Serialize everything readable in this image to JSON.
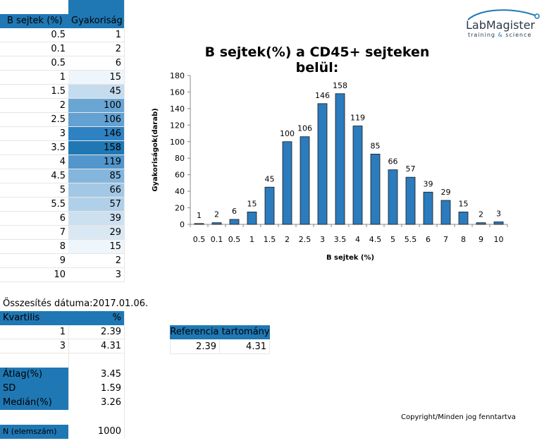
{
  "freq_table": {
    "col1_header": "B sejtek (%)",
    "col2_header": "Gyakoriság",
    "rows": [
      {
        "b": "0.5",
        "f": "1",
        "shade": "#ffffff"
      },
      {
        "b": "0.1",
        "f": "2",
        "shade": "#ffffff"
      },
      {
        "b": "0.5",
        "f": "6",
        "shade": "#ffffff"
      },
      {
        "b": "1",
        "f": "15",
        "shade": "#eef5fb"
      },
      {
        "b": "1.5",
        "f": "45",
        "shade": "#c5dcee"
      },
      {
        "b": "2",
        "f": "100",
        "shade": "#6aa6d4"
      },
      {
        "b": "2.5",
        "f": "106",
        "shade": "#62a1d2"
      },
      {
        "b": "3",
        "f": "146",
        "shade": "#2f82c2"
      },
      {
        "b": "3.5",
        "f": "158",
        "shade": "#1f78b4"
      },
      {
        "b": "4",
        "f": "119",
        "shade": "#5296cc"
      },
      {
        "b": "4.5",
        "f": "85",
        "shade": "#84b6dd"
      },
      {
        "b": "5",
        "f": "66",
        "shade": "#a3c8e5"
      },
      {
        "b": "5.5",
        "f": "57",
        "shade": "#b0d0e9"
      },
      {
        "b": "6",
        "f": "39",
        "shade": "#cde0f0"
      },
      {
        "b": "7",
        "f": "29",
        "shade": "#dae8f4"
      },
      {
        "b": "8",
        "f": "15",
        "shade": "#eef5fb"
      },
      {
        "b": "9",
        "f": "2",
        "shade": "#ffffff"
      },
      {
        "b": "10",
        "f": "3",
        "shade": "#ffffff"
      }
    ]
  },
  "summary": {
    "date_text": "Összesítés dátuma:2017.01.06.",
    "kvartilis_header": "Kvartilis",
    "percent_header": "%",
    "quartiles": [
      {
        "q": "1",
        "v": "2.39"
      },
      {
        "q": "3",
        "v": "4.31"
      }
    ],
    "atlag_label": "Átlag(%)",
    "atlag_value": "3.45",
    "sd_label": "SD",
    "sd_value": "1.59",
    "median_label": "Medián(%)",
    "median_value": "3.26",
    "n_label": "N (elemszám)",
    "n_value": "1000"
  },
  "reference": {
    "title": "Referencia tartomány",
    "low": "2.39",
    "high": "4.31"
  },
  "logo": {
    "name": "LabMagister",
    "tagline_left": "training",
    "tagline_amp": "&",
    "tagline_right": "science"
  },
  "copyright": "Copyright/Minden jog fenntartva",
  "colors": {
    "accent": "#1f78b4",
    "bar": "#2b7bbd"
  },
  "chart_data": {
    "type": "bar",
    "title": "B sejtek(%) a CD45+ sejteken belül:",
    "xlabel": "B sejtek (%)",
    "ylabel": "Gyakoriságok(darab)",
    "categories": [
      "0.5",
      "0.1",
      "0.5",
      "1",
      "1.5",
      "2",
      "2.5",
      "3",
      "3.5",
      "4",
      "4.5",
      "5",
      "5.5",
      "6",
      "7",
      "8",
      "9",
      "10"
    ],
    "values": [
      1,
      2,
      6,
      15,
      45,
      100,
      106,
      146,
      158,
      119,
      85,
      66,
      57,
      39,
      29,
      15,
      2,
      3
    ],
    "ylim": [
      0,
      180
    ],
    "yticks": [
      "0",
      "20",
      "40",
      "60",
      "80",
      "100",
      "120",
      "140",
      "160",
      "180"
    ],
    "data_labels": true,
    "grid": false,
    "legend": "none"
  }
}
